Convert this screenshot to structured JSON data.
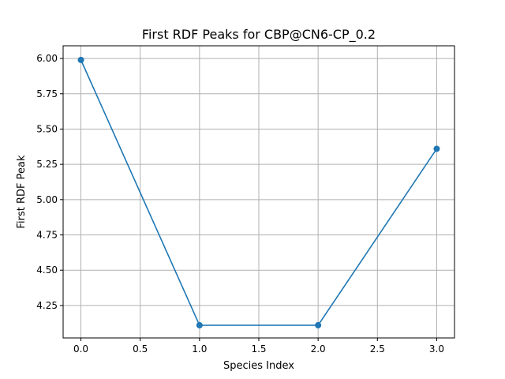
{
  "chart_data": {
    "type": "line",
    "title": "First RDF Peaks for CBP@CN6-CP_0.2",
    "xlabel": "Species Index",
    "ylabel": "First RDF Peak",
    "x": [
      0,
      1,
      2,
      3
    ],
    "series": [
      {
        "values": [
          5.99,
          4.11,
          4.11,
          5.36
        ],
        "color": "#1f77b4",
        "marker": "circle"
      }
    ],
    "xlim": [
      -0.15,
      3.15
    ],
    "ylim": [
      4.02,
      6.09
    ],
    "xticks": [
      0.0,
      0.5,
      1.0,
      1.5,
      2.0,
      2.5,
      3.0
    ],
    "xtick_labels": [
      "0.0",
      "0.5",
      "1.0",
      "1.5",
      "2.0",
      "2.5",
      "3.0"
    ],
    "yticks": [
      4.25,
      4.5,
      4.75,
      5.0,
      5.25,
      5.5,
      5.75,
      6.0
    ],
    "ytick_labels": [
      "4.25",
      "4.50",
      "4.75",
      "5.00",
      "5.25",
      "5.50",
      "5.75",
      "6.00"
    ],
    "grid": true,
    "grid_color": "#b0b0b0"
  }
}
